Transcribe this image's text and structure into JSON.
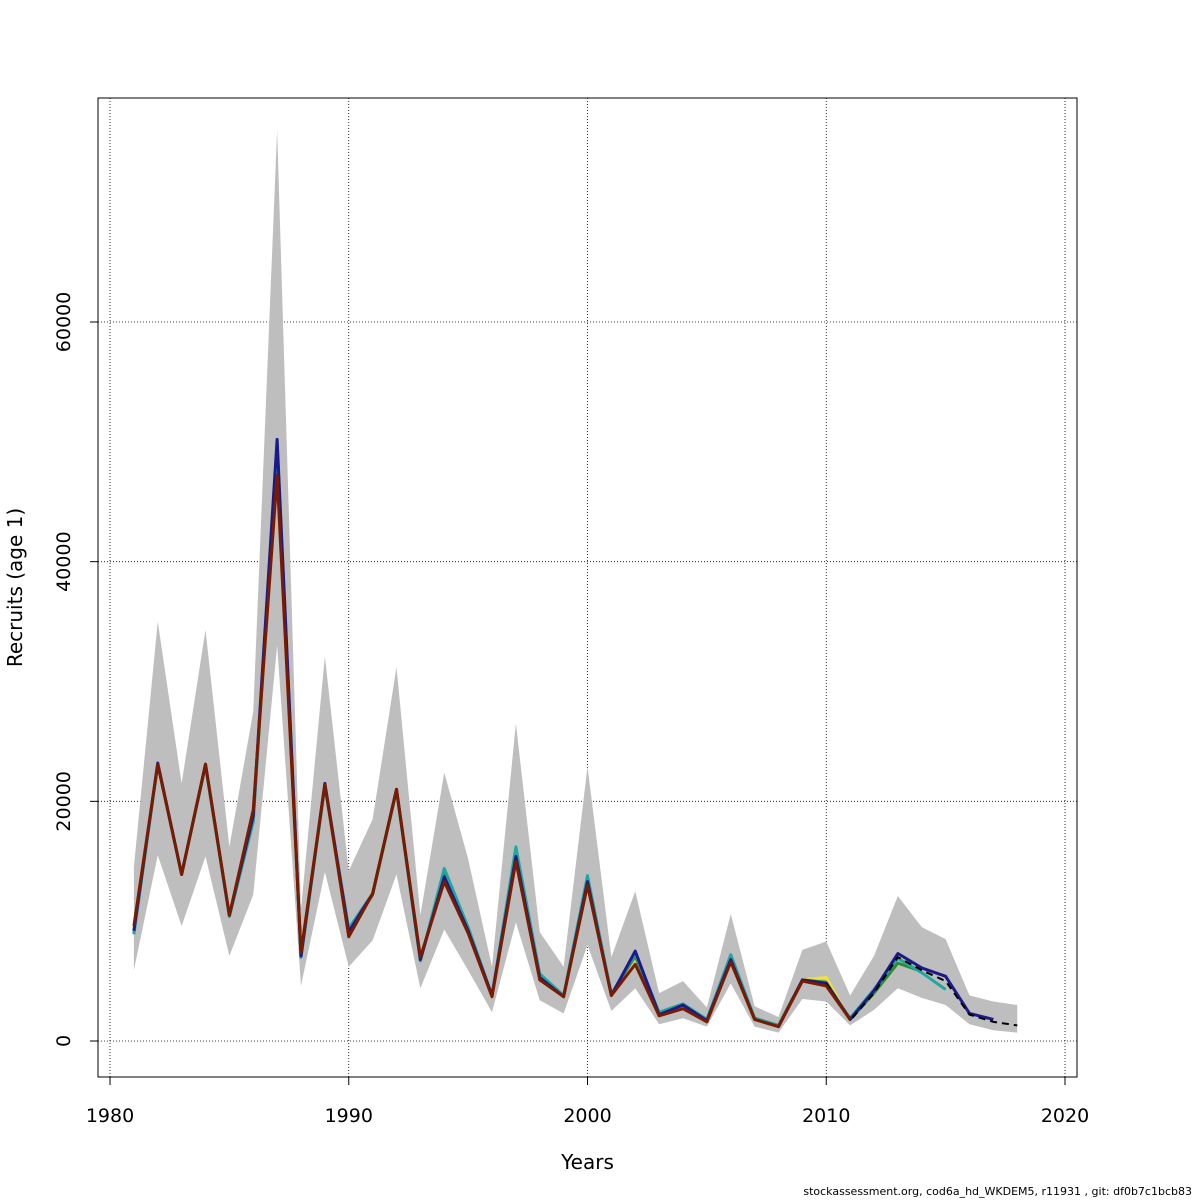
{
  "chart_data": {
    "type": "line",
    "title": "",
    "xlabel": "Years",
    "ylabel": "Recruits (age 1)",
    "xlim": [
      1980,
      2020
    ],
    "ylim": [
      -3000,
      78000
    ],
    "x_ticks": [
      1980,
      1990,
      2000,
      2010,
      2020
    ],
    "y_ticks": [
      0,
      20000,
      40000,
      60000
    ],
    "x_tick_labels": [
      "1980",
      "1990",
      "2000",
      "2010",
      "2020"
    ],
    "y_tick_labels": [
      "0",
      "20000",
      "40000",
      "60000"
    ],
    "grid": true,
    "confidence_band": {
      "x": [
        1981,
        1982,
        1983,
        1984,
        1985,
        1986,
        1987,
        1988,
        1989,
        1990,
        1991,
        1992,
        1993,
        1994,
        1995,
        1996,
        1997,
        1998,
        1999,
        2000,
        2001,
        2002,
        2003,
        2004,
        2005,
        2006,
        2007,
        2008,
        2009,
        2010,
        2011,
        2012,
        2013,
        2014,
        2015,
        2016,
        2017,
        2018
      ],
      "upper": [
        14500,
        35000,
        21500,
        34300,
        16200,
        27500,
        76000,
        11000,
        32100,
        14200,
        18500,
        31200,
        10500,
        22400,
        15200,
        6200,
        26500,
        9100,
        6200,
        22900,
        7000,
        12500,
        4000,
        5000,
        2800,
        10600,
        2900,
        2000,
        7600,
        8300,
        3800,
        7100,
        12100,
        9500,
        8500,
        3800,
        3300,
        3000
      ],
      "lower": [
        5900,
        15500,
        9600,
        15400,
        7100,
        12200,
        33000,
        4600,
        14100,
        6200,
        8400,
        13900,
        4400,
        9300,
        5900,
        2400,
        9900,
        3400,
        2300,
        8000,
        2500,
        4400,
        1400,
        1900,
        1200,
        4800,
        1200,
        700,
        3500,
        3300,
        1300,
        2600,
        4400,
        3600,
        3000,
        1400,
        900,
        700
      ]
    },
    "series": [
      {
        "color": "#f0e040",
        "x": [
          1981,
          1982,
          1983,
          1984,
          1985,
          1986,
          1987,
          1988,
          1989,
          1990,
          1991,
          1992,
          1993,
          1994,
          1995,
          1996,
          1997,
          1998,
          1999,
          2000,
          2001,
          2002,
          2003,
          2004,
          2005,
          2006,
          2007,
          2008,
          2009,
          2010,
          2011
        ],
        "values": [
          9300,
          23100,
          13900,
          23100,
          10600,
          19000,
          47700,
          7300,
          21400,
          8900,
          12400,
          21000,
          6900,
          13700,
          9100,
          3700,
          15200,
          5200,
          3700,
          13100,
          3800,
          6500,
          2100,
          2800,
          1700,
          6600,
          1800,
          1200,
          5100,
          5300,
          1700
        ]
      },
      {
        "color": "#2e8b2e",
        "x": [
          1981,
          1982,
          1983,
          1984,
          1985,
          1986,
          1987,
          1988,
          1989,
          1990,
          1991,
          1992,
          1993,
          1994,
          1995,
          1996,
          1997,
          1998,
          1999,
          2000,
          2001,
          2002,
          2003,
          2004,
          2005,
          2006,
          2007,
          2008,
          2009,
          2010,
          2011,
          2012,
          2013,
          2014
        ],
        "values": [
          9000,
          23100,
          13900,
          23000,
          10400,
          18500,
          49700,
          7000,
          21300,
          9100,
          12200,
          20900,
          6700,
          14000,
          9300,
          3800,
          15600,
          5300,
          3700,
          13400,
          3900,
          7100,
          2300,
          3000,
          1700,
          7000,
          1900,
          1300,
          5100,
          4900,
          1800,
          4000,
          6500,
          5800
        ]
      },
      {
        "color": "#20a8a0",
        "x": [
          1981,
          1982,
          1983,
          1984,
          1985,
          1986,
          1987,
          1988,
          1989,
          1990,
          1991,
          1992,
          1993,
          1994,
          1995,
          1996,
          1997,
          1998,
          1999,
          2000,
          2001,
          2002,
          2003,
          2004,
          2005,
          2006,
          2007,
          2008,
          2009,
          2010,
          2011,
          2012,
          2013,
          2014,
          2015
        ],
        "values": [
          8900,
          23100,
          13900,
          23000,
          10400,
          18300,
          49500,
          7000,
          21300,
          9400,
          12300,
          21000,
          6700,
          14400,
          9500,
          3800,
          16200,
          5600,
          3800,
          13800,
          3900,
          7300,
          2400,
          3100,
          1800,
          7200,
          1900,
          1300,
          5000,
          4700,
          1900,
          4300,
          6900,
          5700,
          4300
        ]
      },
      {
        "color": "#1a1a8c",
        "x": [
          1981,
          1982,
          1983,
          1984,
          1985,
          1986,
          1987,
          1988,
          1989,
          1990,
          1991,
          1992,
          1993,
          1994,
          1995,
          1996,
          1997,
          1998,
          1999,
          2000,
          2001,
          2002,
          2003,
          2004,
          2005,
          2006,
          2007,
          2008,
          2009,
          2010,
          2011,
          2012,
          2013,
          2014,
          2015,
          2016,
          2017
        ],
        "values": [
          9200,
          23200,
          13900,
          23100,
          10500,
          18800,
          50200,
          7100,
          21500,
          9100,
          12300,
          21000,
          6800,
          13700,
          9200,
          3800,
          15400,
          5300,
          3700,
          13300,
          3800,
          7500,
          2200,
          3000,
          1700,
          6800,
          1800,
          1200,
          5100,
          4800,
          1800,
          4200,
          7300,
          6100,
          5400,
          2300,
          1800
        ]
      },
      {
        "color": "#000000",
        "dashed": true,
        "x": [
          2010,
          2011,
          2012,
          2013,
          2014,
          2015,
          2016,
          2017,
          2018
        ],
        "values": [
          4800,
          1700,
          4000,
          7000,
          5900,
          5000,
          2200,
          1600,
          1300
        ]
      },
      {
        "color": "#7a1a00",
        "x": [
          1981,
          1982,
          1983,
          1984,
          1985,
          1986,
          1987,
          1988,
          1989,
          1990,
          1991,
          1992,
          1993,
          1994,
          1995,
          1996,
          1997,
          1998,
          1999,
          2000,
          2001,
          2002,
          2003,
          2004,
          2005,
          2006,
          2007,
          2008,
          2009,
          2010,
          2011
        ],
        "values": [
          9600,
          23100,
          13900,
          23100,
          10500,
          19300,
          47200,
          7400,
          21400,
          8700,
          12300,
          21000,
          7000,
          13300,
          9000,
          3700,
          15000,
          5100,
          3700,
          13000,
          3800,
          6400,
          2100,
          2700,
          1600,
          6600,
          1800,
          1200,
          5000,
          4600,
          1800
        ]
      }
    ]
  },
  "footer": "stockassessment.org, cod6a_hd_WKDEM5, r11931 , git: df0b7c1bcb83"
}
